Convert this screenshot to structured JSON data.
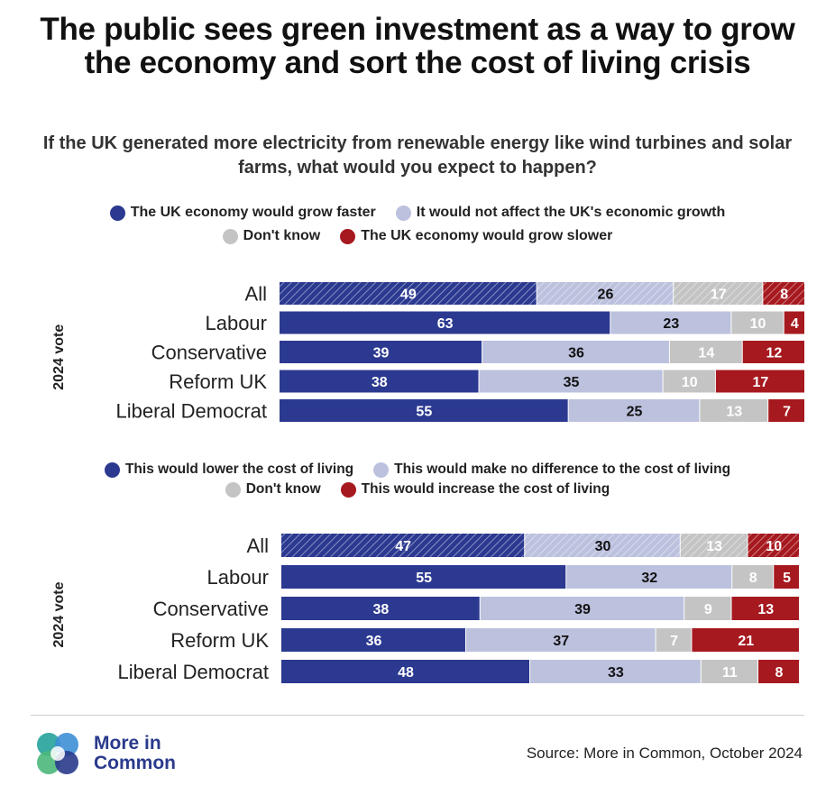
{
  "title": "The public sees green investment as a way to grow the economy and sort the cost of living crisis",
  "subtitle": "If the UK generated more electricity from renewable energy like wind turbines and solar farms, what would you expect to happen?",
  "colors": {
    "dark_blue": "#2b3990",
    "light_blue": "#bcc1de",
    "grey": "#c4c4c4",
    "red": "#a6191f"
  },
  "chart_data": [
    {
      "type": "bar",
      "orientation": "horizontal",
      "stacked": true,
      "y_axis_group_label": "2024 vote",
      "categories": [
        "All",
        "Labour",
        "Conservative",
        "Reform UK",
        "Liberal Democrat"
      ],
      "series": [
        {
          "name": "The UK economy would grow faster",
          "color": "#2b3990",
          "values": [
            49,
            63,
            39,
            38,
            55
          ]
        },
        {
          "name": "It would not affect the UK's economic growth",
          "color": "#bcc1de",
          "values": [
            26,
            23,
            36,
            35,
            25
          ]
        },
        {
          "name": "Don't know",
          "color": "#c4c4c4",
          "values": [
            17,
            10,
            14,
            10,
            13
          ]
        },
        {
          "name": "The UK economy would grow slower",
          "color": "#a6191f",
          "values": [
            8,
            4,
            12,
            17,
            7
          ]
        }
      ],
      "hatched_categories": [
        "All"
      ]
    },
    {
      "type": "bar",
      "orientation": "horizontal",
      "stacked": true,
      "y_axis_group_label": "2024 vote",
      "categories": [
        "All",
        "Labour",
        "Conservative",
        "Reform UK",
        "Liberal Democrat"
      ],
      "series": [
        {
          "name": "This would lower the cost of living",
          "color": "#2b3990",
          "values": [
            47,
            55,
            38,
            36,
            48
          ]
        },
        {
          "name": "This would make no difference to the cost of living",
          "color": "#bcc1de",
          "values": [
            30,
            32,
            39,
            37,
            33
          ]
        },
        {
          "name": "Don't know",
          "color": "#c4c4c4",
          "values": [
            13,
            8,
            9,
            7,
            11
          ]
        },
        {
          "name": "This would increase the cost of living",
          "color": "#a6191f",
          "values": [
            10,
            5,
            13,
            21,
            8
          ]
        }
      ],
      "hatched_categories": [
        "All"
      ]
    }
  ],
  "logo": {
    "line1": "More in",
    "line2": "Common"
  },
  "source": "Source: More in Common, October 2024"
}
